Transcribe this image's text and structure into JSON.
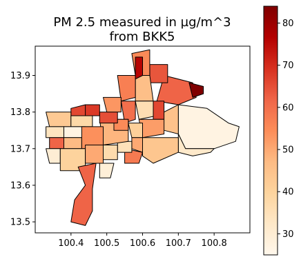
{
  "chart_data": {
    "type": "choropleth",
    "title_line1": "PM 2.5 measured in µg/m^3",
    "title_line2": "from BKK5",
    "x_ticks": [
      "100.4",
      "100.5",
      "100.6",
      "100.7",
      "100.8"
    ],
    "x_tick_values": [
      100.4,
      100.5,
      100.6,
      100.7,
      100.8
    ],
    "y_ticks": [
      "13.5",
      "13.6",
      "13.7",
      "13.8",
      "13.9"
    ],
    "y_tick_values": [
      13.5,
      13.6,
      13.7,
      13.8,
      13.9
    ],
    "xlim": [
      100.3,
      100.9
    ],
    "ylim": [
      13.47,
      13.98
    ],
    "colorbar": {
      "colormap": "OrRd",
      "range": [
        25,
        84
      ],
      "ticks": [
        "30",
        "40",
        "50",
        "60",
        "70",
        "80"
      ],
      "tick_values": [
        30,
        40,
        50,
        60,
        70,
        80
      ]
    },
    "regions": [
      {
        "id": "nong-chok",
        "value": 27,
        "points": [
          [
            100.7,
            13.82
          ],
          [
            100.78,
            13.81
          ],
          [
            100.84,
            13.77
          ],
          [
            100.87,
            13.76
          ],
          [
            100.86,
            13.72
          ],
          [
            100.8,
            13.7
          ],
          [
            100.72,
            13.7
          ],
          [
            100.7,
            13.74
          ]
        ]
      },
      {
        "id": "lat-krabang",
        "value": 32,
        "points": [
          [
            100.7,
            13.74
          ],
          [
            100.72,
            13.7
          ],
          [
            100.8,
            13.7
          ],
          [
            100.79,
            13.69
          ],
          [
            100.74,
            13.68
          ],
          [
            100.7,
            13.69
          ]
        ]
      },
      {
        "id": "min-buri",
        "value": 45,
        "points": [
          [
            100.64,
            13.79
          ],
          [
            100.7,
            13.82
          ],
          [
            100.7,
            13.74
          ],
          [
            100.66,
            13.75
          ]
        ]
      },
      {
        "id": "khlong-sam-wa",
        "value": 62,
        "points": [
          [
            100.66,
            13.9
          ],
          [
            100.74,
            13.88
          ],
          [
            100.75,
            13.84
          ],
          [
            100.7,
            13.82
          ],
          [
            100.64,
            13.83
          ]
        ]
      },
      {
        "id": "northeast-hotspot",
        "value": 84,
        "points": [
          [
            100.73,
            13.88
          ],
          [
            100.77,
            13.87
          ],
          [
            100.77,
            13.85
          ],
          [
            100.74,
            13.84
          ]
        ]
      },
      {
        "id": "sai-mai",
        "value": 64,
        "points": [
          [
            100.62,
            13.93
          ],
          [
            100.67,
            13.93
          ],
          [
            100.67,
            13.88
          ],
          [
            100.62,
            13.88
          ]
        ]
      },
      {
        "id": "don-mueang",
        "value": 55,
        "points": [
          [
            100.57,
            13.96
          ],
          [
            100.62,
            13.97
          ],
          [
            100.62,
            13.9
          ],
          [
            100.58,
            13.9
          ]
        ]
      },
      {
        "id": "bang-khen",
        "value": 46,
        "points": [
          [
            100.58,
            13.9
          ],
          [
            100.62,
            13.9
          ],
          [
            100.63,
            13.83
          ],
          [
            100.58,
            13.83
          ]
        ]
      },
      {
        "id": "lak-si",
        "value": 57,
        "points": [
          [
            100.53,
            13.9
          ],
          [
            100.58,
            13.9
          ],
          [
            100.58,
            13.84
          ],
          [
            100.54,
            13.83
          ]
        ]
      },
      {
        "id": "north-strip",
        "value": 76,
        "points": [
          [
            100.58,
            13.95
          ],
          [
            100.6,
            13.95
          ],
          [
            100.6,
            13.9
          ],
          [
            100.58,
            13.89
          ]
        ]
      },
      {
        "id": "chatuchak",
        "value": 60,
        "points": [
          [
            100.54,
            13.83
          ],
          [
            100.58,
            13.83
          ],
          [
            100.58,
            13.78
          ],
          [
            100.55,
            13.77
          ]
        ]
      },
      {
        "id": "bueng-kum",
        "value": 36,
        "points": [
          [
            100.58,
            13.83
          ],
          [
            100.63,
            13.83
          ],
          [
            100.64,
            13.79
          ],
          [
            100.59,
            13.78
          ]
        ]
      },
      {
        "id": "kannayao",
        "value": 66,
        "points": [
          [
            100.63,
            13.83
          ],
          [
            100.66,
            13.83
          ],
          [
            100.66,
            13.78
          ],
          [
            100.63,
            13.78
          ]
        ]
      },
      {
        "id": "saphan-sung",
        "value": 52,
        "points": [
          [
            100.59,
            13.78
          ],
          [
            100.66,
            13.78
          ],
          [
            100.66,
            13.74
          ],
          [
            100.6,
            13.73
          ]
        ]
      },
      {
        "id": "bang-kapi",
        "value": 41,
        "points": [
          [
            100.56,
            13.77
          ],
          [
            100.6,
            13.77
          ],
          [
            100.6,
            13.73
          ],
          [
            100.57,
            13.73
          ]
        ]
      },
      {
        "id": "prawet",
        "value": 44,
        "points": [
          [
            100.6,
            13.73
          ],
          [
            100.7,
            13.73
          ],
          [
            100.7,
            13.69
          ],
          [
            100.63,
            13.66
          ],
          [
            100.6,
            13.68
          ]
        ]
      },
      {
        "id": "suan-luang",
        "value": 50,
        "points": [
          [
            100.57,
            13.73
          ],
          [
            100.6,
            13.73
          ],
          [
            100.6,
            13.69
          ],
          [
            100.57,
            13.7
          ]
        ]
      },
      {
        "id": "bang-na",
        "value": 58,
        "points": [
          [
            100.55,
            13.7
          ],
          [
            100.6,
            13.69
          ],
          [
            100.59,
            13.66
          ],
          [
            100.55,
            13.66
          ]
        ]
      },
      {
        "id": "phra-khanong",
        "value": 35,
        "points": [
          [
            100.53,
            13.72
          ],
          [
            100.57,
            13.72
          ],
          [
            100.57,
            13.69
          ],
          [
            100.53,
            13.69
          ]
        ]
      },
      {
        "id": "central-core",
        "value": 48,
        "points": [
          [
            100.48,
            13.78
          ],
          [
            100.56,
            13.78
          ],
          [
            100.56,
            13.72
          ],
          [
            100.49,
            13.71
          ]
        ]
      },
      {
        "id": "central-east",
        "value": 55,
        "points": [
          [
            100.52,
            13.78
          ],
          [
            100.56,
            13.78
          ],
          [
            100.56,
            13.75
          ],
          [
            100.52,
            13.75
          ]
        ]
      },
      {
        "id": "dusit",
        "value": 65,
        "points": [
          [
            100.48,
            13.8
          ],
          [
            100.53,
            13.8
          ],
          [
            100.53,
            13.77
          ],
          [
            100.48,
            13.77
          ]
        ]
      },
      {
        "id": "bang-sue",
        "value": 53,
        "points": [
          [
            100.49,
            13.84
          ],
          [
            100.54,
            13.84
          ],
          [
            100.54,
            13.8
          ],
          [
            100.5,
            13.8
          ]
        ]
      },
      {
        "id": "riverside-north",
        "value": 68,
        "points": [
          [
            100.44,
            13.82
          ],
          [
            100.48,
            13.82
          ],
          [
            100.48,
            13.79
          ],
          [
            100.43,
            13.79
          ]
        ]
      },
      {
        "id": "west-strip",
        "value": 66,
        "points": [
          [
            100.4,
            13.81
          ],
          [
            100.44,
            13.82
          ],
          [
            100.44,
            13.79
          ],
          [
            100.4,
            13.79
          ]
        ]
      },
      {
        "id": "taling-chan",
        "value": 43,
        "points": [
          [
            100.33,
            13.8
          ],
          [
            100.4,
            13.8
          ],
          [
            100.4,
            13.76
          ],
          [
            100.34,
            13.76
          ]
        ]
      },
      {
        "id": "bang-phlat",
        "value": 38,
        "points": [
          [
            100.4,
            13.79
          ],
          [
            100.46,
            13.79
          ],
          [
            100.46,
            13.76
          ],
          [
            100.4,
            13.76
          ]
        ]
      },
      {
        "id": "thawi-watthana",
        "value": 34,
        "points": [
          [
            100.33,
            13.76
          ],
          [
            100.38,
            13.76
          ],
          [
            100.38,
            13.73
          ],
          [
            100.33,
            13.73
          ]
        ]
      },
      {
        "id": "bangkok-noi",
        "value": 27,
        "points": [
          [
            100.38,
            13.76
          ],
          [
            100.44,
            13.76
          ],
          [
            100.44,
            13.73
          ],
          [
            100.38,
            13.73
          ]
        ]
      },
      {
        "id": "west-bang-khae",
        "value": 62,
        "points": [
          [
            100.34,
            13.73
          ],
          [
            100.38,
            13.73
          ],
          [
            100.38,
            13.7
          ],
          [
            100.34,
            13.7
          ]
        ]
      },
      {
        "id": "phasi-charoen",
        "value": 47,
        "points": [
          [
            100.38,
            13.73
          ],
          [
            100.43,
            13.73
          ],
          [
            100.43,
            13.7
          ],
          [
            100.38,
            13.7
          ]
        ]
      },
      {
        "id": "thonburi-core",
        "value": 54,
        "points": [
          [
            100.43,
            13.76
          ],
          [
            100.49,
            13.76
          ],
          [
            100.49,
            13.7
          ],
          [
            100.43,
            13.7
          ]
        ]
      },
      {
        "id": "nong-khaem",
        "value": 30,
        "points": [
          [
            100.33,
            13.7
          ],
          [
            100.37,
            13.7
          ],
          [
            100.37,
            13.66
          ],
          [
            100.34,
            13.66
          ]
        ]
      },
      {
        "id": "bang-bon",
        "value": 40,
        "points": [
          [
            100.37,
            13.7
          ],
          [
            100.44,
            13.7
          ],
          [
            100.44,
            13.64
          ],
          [
            100.37,
            13.64
          ]
        ]
      },
      {
        "id": "chom-thong",
        "value": 50,
        "points": [
          [
            100.44,
            13.71
          ],
          [
            100.49,
            13.71
          ],
          [
            100.49,
            13.66
          ],
          [
            100.44,
            13.66
          ]
        ]
      },
      {
        "id": "rat-burana",
        "value": 37,
        "points": [
          [
            100.49,
            13.71
          ],
          [
            100.53,
            13.71
          ],
          [
            100.53,
            13.67
          ],
          [
            100.49,
            13.67
          ]
        ]
      },
      {
        "id": "thung-khru",
        "value": 29,
        "points": [
          [
            100.48,
            13.66
          ],
          [
            100.52,
            13.66
          ],
          [
            100.51,
            13.62
          ],
          [
            100.48,
            13.62
          ]
        ]
      },
      {
        "id": "bang-khun-thian",
        "value": 62,
        "points": [
          [
            100.42,
            13.65
          ],
          [
            100.47,
            13.66
          ],
          [
            100.46,
            13.59
          ],
          [
            100.46,
            13.53
          ],
          [
            100.44,
            13.49
          ],
          [
            100.4,
            13.5
          ],
          [
            100.41,
            13.56
          ],
          [
            100.44,
            13.6
          ]
        ]
      }
    ]
  }
}
